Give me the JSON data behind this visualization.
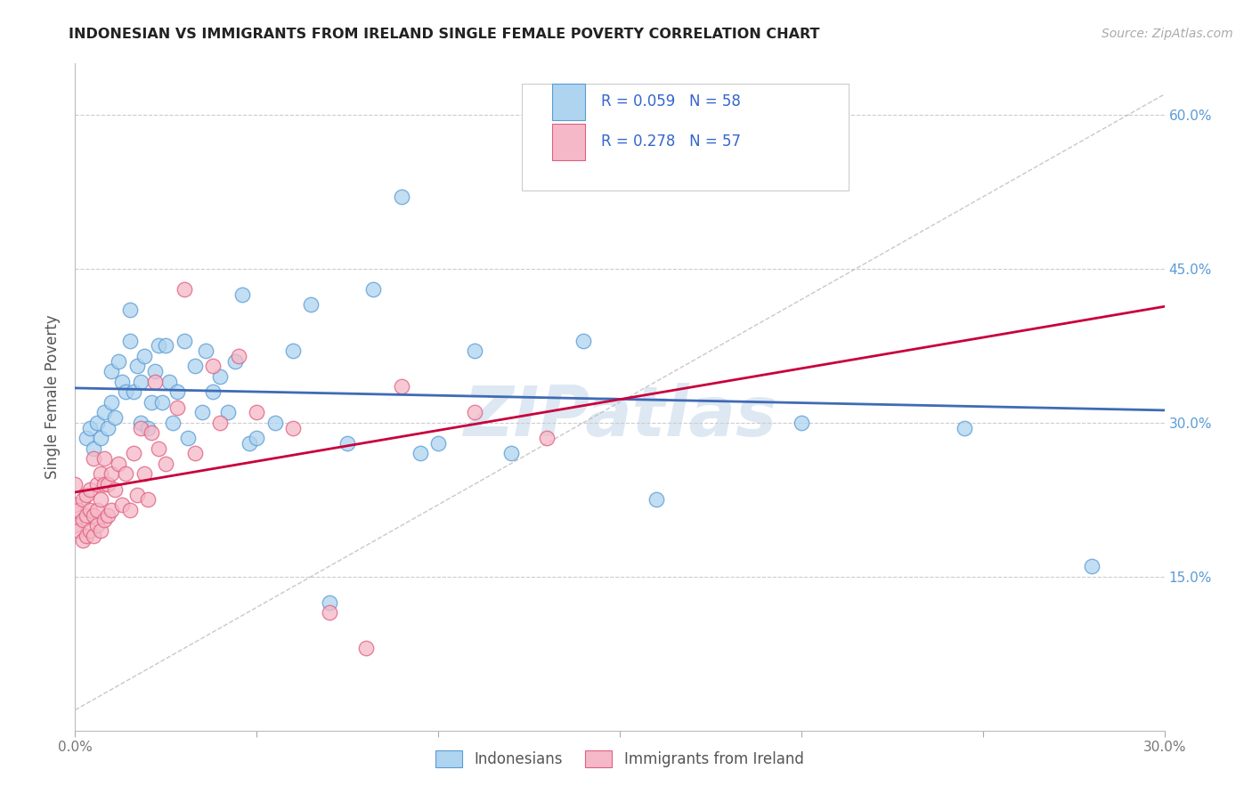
{
  "title": "INDONESIAN VS IMMIGRANTS FROM IRELAND SINGLE FEMALE POVERTY CORRELATION CHART",
  "source": "Source: ZipAtlas.com",
  "ylabel": "Single Female Poverty",
  "x_min": 0.0,
  "x_max": 0.3,
  "y_min": 0.0,
  "y_max": 0.65,
  "x_ticks": [
    0.0,
    0.05,
    0.1,
    0.15,
    0.2,
    0.25,
    0.3
  ],
  "x_tick_labels": [
    "0.0%",
    "",
    "",
    "",
    "",
    "",
    "30.0%"
  ],
  "y_ticks": [
    0.0,
    0.15,
    0.3,
    0.45,
    0.6
  ],
  "y_tick_labels": [
    "",
    "15.0%",
    "30.0%",
    "45.0%",
    "60.0%"
  ],
  "color_blue": "#AED4F0",
  "color_pink": "#F5B8C8",
  "edge_blue": "#5B9BD5",
  "edge_pink": "#E0607E",
  "trend_blue": "#3F6BB5",
  "trend_pink": "#C8003C",
  "watermark": "ZIPatlas",
  "indonesians_x": [
    0.003,
    0.004,
    0.005,
    0.006,
    0.007,
    0.008,
    0.009,
    0.01,
    0.01,
    0.011,
    0.012,
    0.013,
    0.014,
    0.015,
    0.015,
    0.016,
    0.017,
    0.018,
    0.018,
    0.019,
    0.02,
    0.021,
    0.022,
    0.023,
    0.024,
    0.025,
    0.026,
    0.027,
    0.028,
    0.03,
    0.031,
    0.033,
    0.035,
    0.036,
    0.038,
    0.04,
    0.042,
    0.044,
    0.046,
    0.048,
    0.05,
    0.055,
    0.06,
    0.065,
    0.07,
    0.075,
    0.082,
    0.09,
    0.095,
    0.1,
    0.11,
    0.12,
    0.14,
    0.16,
    0.2,
    0.21,
    0.245,
    0.28
  ],
  "indonesians_y": [
    0.285,
    0.295,
    0.275,
    0.3,
    0.285,
    0.31,
    0.295,
    0.32,
    0.35,
    0.305,
    0.36,
    0.34,
    0.33,
    0.38,
    0.41,
    0.33,
    0.355,
    0.3,
    0.34,
    0.365,
    0.295,
    0.32,
    0.35,
    0.375,
    0.32,
    0.375,
    0.34,
    0.3,
    0.33,
    0.38,
    0.285,
    0.355,
    0.31,
    0.37,
    0.33,
    0.345,
    0.31,
    0.36,
    0.425,
    0.28,
    0.285,
    0.3,
    0.37,
    0.415,
    0.125,
    0.28,
    0.43,
    0.52,
    0.27,
    0.28,
    0.37,
    0.27,
    0.38,
    0.225,
    0.3,
    0.575,
    0.295,
    0.16
  ],
  "ireland_x": [
    0.0,
    0.0,
    0.0,
    0.001,
    0.001,
    0.002,
    0.002,
    0.002,
    0.003,
    0.003,
    0.003,
    0.004,
    0.004,
    0.004,
    0.005,
    0.005,
    0.005,
    0.006,
    0.006,
    0.006,
    0.007,
    0.007,
    0.007,
    0.008,
    0.008,
    0.008,
    0.009,
    0.009,
    0.01,
    0.01,
    0.011,
    0.012,
    0.013,
    0.014,
    0.015,
    0.016,
    0.017,
    0.018,
    0.019,
    0.02,
    0.021,
    0.022,
    0.023,
    0.025,
    0.028,
    0.03,
    0.033,
    0.038,
    0.04,
    0.045,
    0.05,
    0.06,
    0.07,
    0.08,
    0.09,
    0.11,
    0.13
  ],
  "ireland_y": [
    0.2,
    0.22,
    0.24,
    0.195,
    0.215,
    0.185,
    0.205,
    0.225,
    0.19,
    0.21,
    0.23,
    0.195,
    0.215,
    0.235,
    0.19,
    0.21,
    0.265,
    0.2,
    0.215,
    0.24,
    0.195,
    0.225,
    0.25,
    0.205,
    0.24,
    0.265,
    0.21,
    0.24,
    0.215,
    0.25,
    0.235,
    0.26,
    0.22,
    0.25,
    0.215,
    0.27,
    0.23,
    0.295,
    0.25,
    0.225,
    0.29,
    0.34,
    0.275,
    0.26,
    0.315,
    0.43,
    0.27,
    0.355,
    0.3,
    0.365,
    0.31,
    0.295,
    0.115,
    0.08,
    0.335,
    0.31,
    0.285
  ]
}
